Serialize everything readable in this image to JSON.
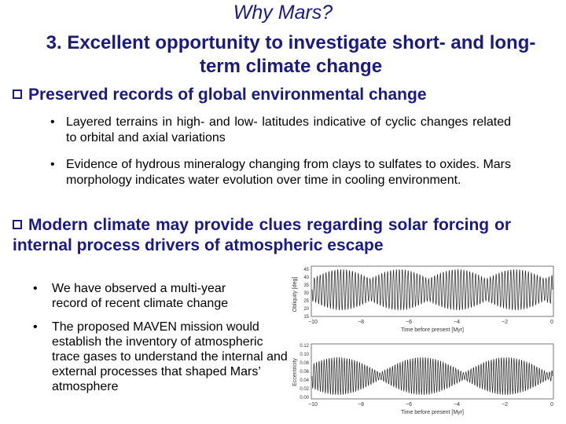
{
  "title": "Why Mars?",
  "subtitle": "3. Excellent opportunity to investigate short- and long-term climate change",
  "section1": {
    "heading": "Preserved records of global environmental change",
    "bullets": [
      "Layered terrains in high- and low- latitudes indicative of cyclic changes related to orbital and axial variations",
      "Evidence of hydrous mineralogy changing from clays to sulfates to oxides.  Mars morphology indicates water evolution over time in cooling environment."
    ]
  },
  "section2": {
    "heading": "Modern climate may provide clues regarding solar forcing or internal process drivers of atmospheric escape",
    "bullets": [
      "We have observed a multi-year record of recent climate change",
      "The proposed MAVEN mission would establish the inventory of atmospheric trace gases to understand the internal and external processes that shaped Mars’ atmosphere"
    ]
  },
  "plots": {
    "top": {
      "ylabel": "Obliquity [deg]",
      "xlabel": "Time before present [Myr]",
      "xticks": [
        "−10",
        "−8",
        "−6",
        "−4",
        "−2",
        "0"
      ],
      "yticks": [
        "45",
        "40",
        "35",
        "30",
        "25",
        "20",
        "15"
      ]
    },
    "bottom": {
      "ylabel": "Eccentricity",
      "xlabel": "Time before present [Myr]",
      "xticks": [
        "−10",
        "−8",
        "−6",
        "−4",
        "−2",
        "0"
      ],
      "yticks": [
        "0.12",
        "0.10",
        "0.08",
        "0.06",
        "0.04",
        "0.02",
        "0.00"
      ]
    }
  },
  "colors": {
    "heading": "#1a1a80",
    "text": "#000000"
  }
}
